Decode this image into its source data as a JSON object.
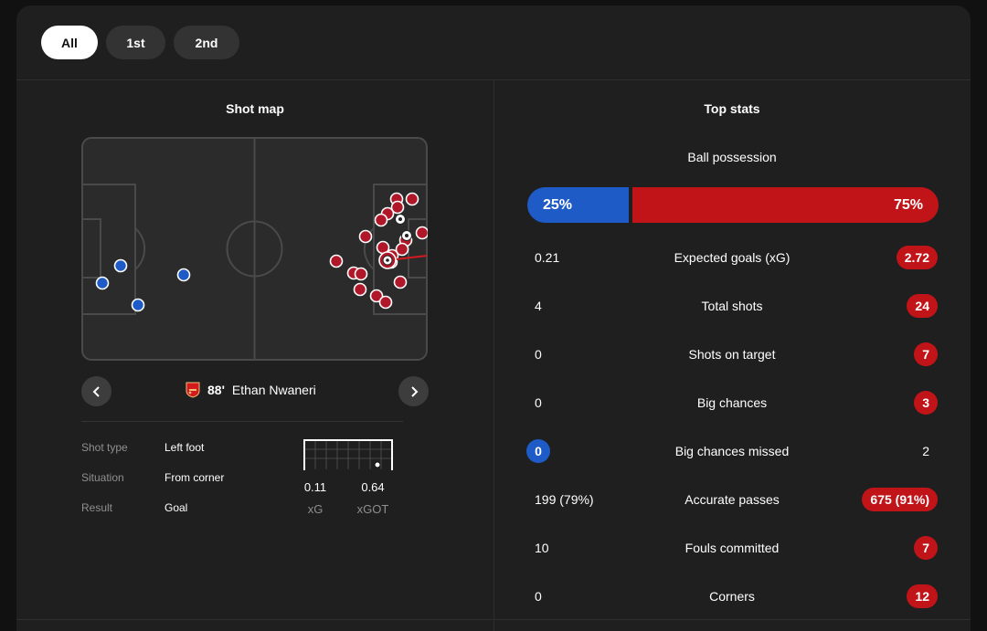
{
  "tabs": [
    {
      "label": "All",
      "active": true
    },
    {
      "label": "1st",
      "active": false
    },
    {
      "label": "2nd",
      "active": false
    }
  ],
  "shot_map": {
    "title": "Shot map",
    "selected_shot": {
      "minute": "88'",
      "player": "Ethan Nwaneri",
      "team_icon": "arsenal-crest-icon",
      "details": [
        {
          "label": "Shot type",
          "value": "Left foot"
        },
        {
          "label": "Situation",
          "value": "From corner"
        },
        {
          "label": "Result",
          "value": "Goal"
        }
      ],
      "xg_value": "0.11",
      "xg_label": "xG",
      "xgot_value": "0.64",
      "xgot_label": "xGOT"
    },
    "colors": {
      "home": "#1e5bc6",
      "away": "#b0182a"
    }
  },
  "top_stats": {
    "title": "Top stats",
    "possession": {
      "label": "Ball possession",
      "home": "25%",
      "away": "75%",
      "home_fraction": 0.25
    },
    "rows": [
      {
        "name": "Expected goals (xG)",
        "home": "0.21",
        "away": "2.72",
        "highlight": "away"
      },
      {
        "name": "Total shots",
        "home": "4",
        "away": "24",
        "highlight": "away"
      },
      {
        "name": "Shots on target",
        "home": "0",
        "away": "7",
        "highlight": "away"
      },
      {
        "name": "Big chances",
        "home": "0",
        "away": "3",
        "highlight": "away"
      },
      {
        "name": "Big chances missed",
        "home": "0",
        "away": "2",
        "highlight": "home"
      },
      {
        "name": "Accurate passes",
        "home": "199 (79%)",
        "away": "675 (91%)",
        "highlight": "away"
      },
      {
        "name": "Fouls committed",
        "home": "10",
        "away": "7",
        "highlight": "away"
      },
      {
        "name": "Corners",
        "home": "0",
        "away": "12",
        "highlight": "away"
      }
    ],
    "colors": {
      "home": "#1e5bc6",
      "away": "#c11419"
    }
  }
}
